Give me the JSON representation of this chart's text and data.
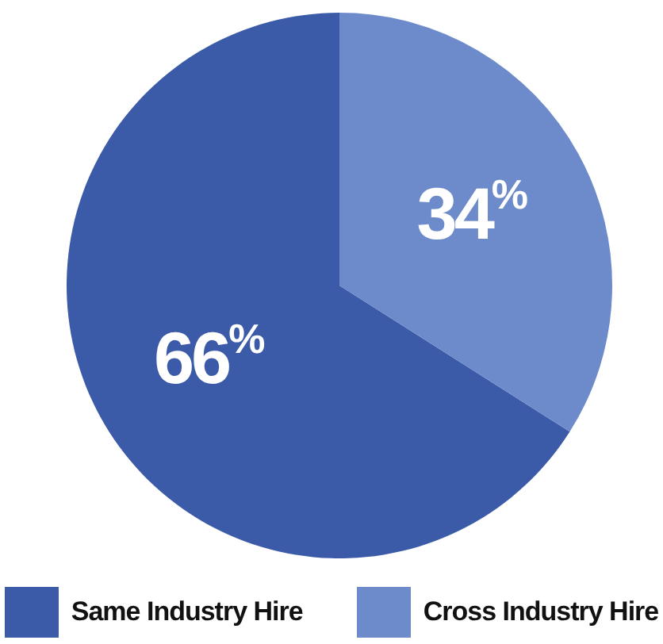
{
  "chart_data": {
    "type": "pie",
    "categories": [
      "Same Industry Hire",
      "Cross Industry Hire"
    ],
    "values": [
      66,
      34
    ],
    "colors": [
      "#3b5ba8",
      "#6d8bcb"
    ],
    "value_labels": [
      "66$^{%}$",
      "34$^{%}$"
    ],
    "legend": "bottom"
  }
}
